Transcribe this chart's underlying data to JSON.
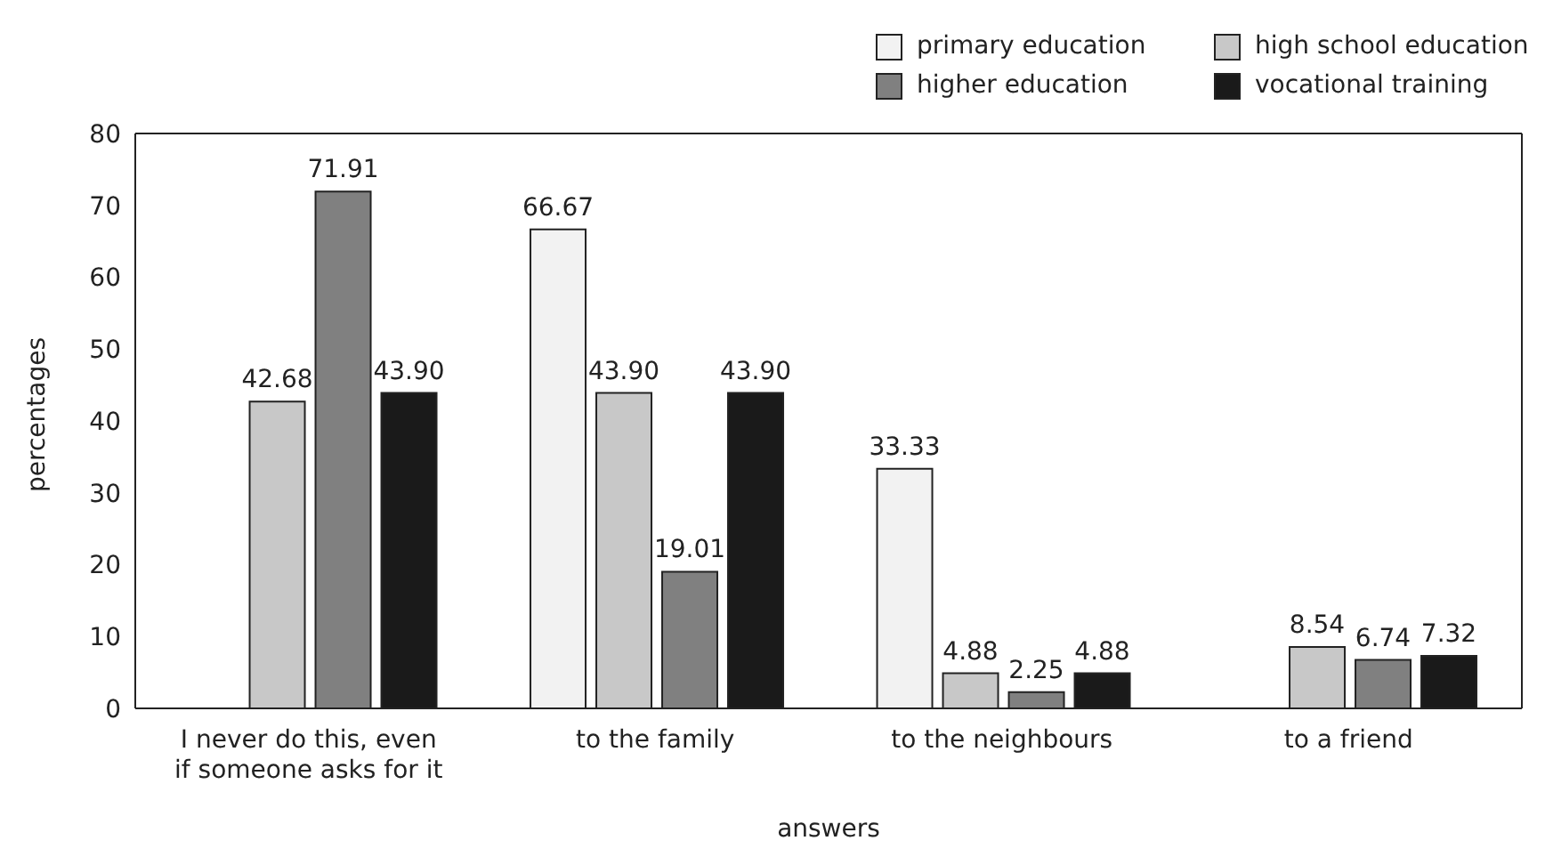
{
  "chart_data": {
    "type": "bar",
    "xlabel": "answers",
    "ylabel": "percentages",
    "categories": [
      "I never do this, even if someone asks for it",
      "to the family",
      "to the neighbours",
      "to a friend"
    ],
    "series": [
      {
        "name": "primary education",
        "color": "#f2f2f2",
        "values": [
          null,
          66.67,
          33.33,
          null
        ],
        "value_labels": [
          null,
          "66.67",
          "33.33",
          null
        ]
      },
      {
        "name": "high school education",
        "color": "#c8c8c8",
        "values": [
          42.68,
          43.9,
          4.88,
          8.54
        ],
        "value_labels": [
          "42.68",
          "43.90",
          "4.88",
          "8.54"
        ]
      },
      {
        "name": "higher education",
        "color": "#808080",
        "values": [
          71.91,
          19.01,
          2.25,
          6.74
        ],
        "value_labels": [
          "71.91",
          "19.01",
          "2.25",
          "6.74"
        ]
      },
      {
        "name": "vocational training",
        "color": "#1a1a1a",
        "values": [
          43.9,
          43.9,
          4.88,
          7.32
        ],
        "value_labels": [
          "43.90",
          "43.90",
          "4.88",
          "7.32"
        ]
      }
    ],
    "ylim": [
      0,
      80
    ],
    "yticks": [
      0,
      10,
      20,
      30,
      40,
      50,
      60,
      70,
      80
    ],
    "grid": false,
    "legend": "top right"
  }
}
